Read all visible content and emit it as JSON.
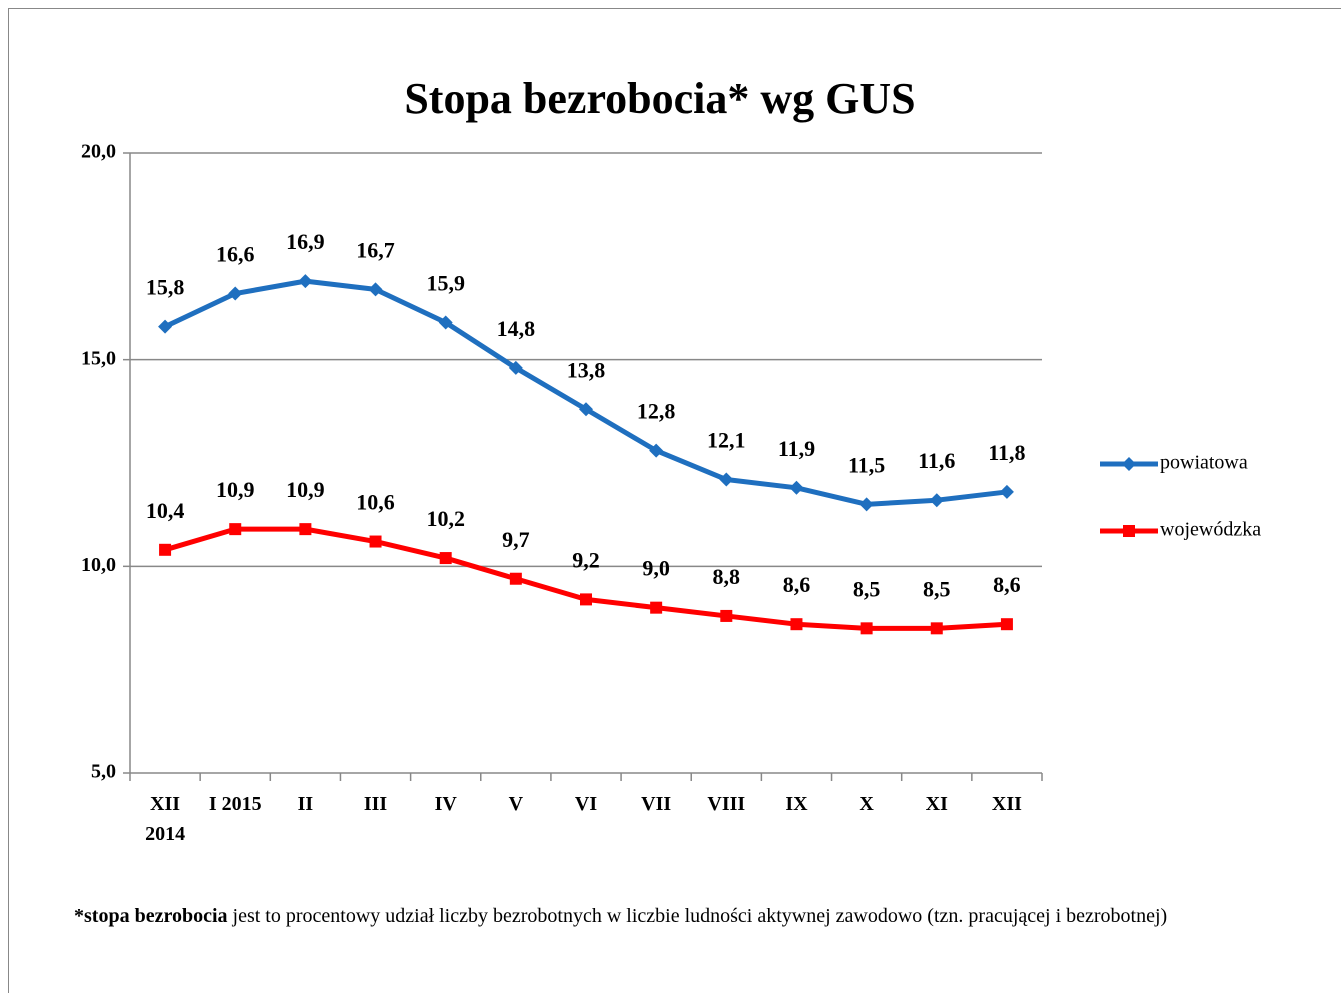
{
  "chart_data": {
    "type": "line",
    "title": "Stopa bezrobocia* wg GUS",
    "categories": [
      "XII 2014",
      "I 2015",
      "II",
      "III",
      "IV",
      "V",
      "VI",
      "VII",
      "VIII",
      "IX",
      "X",
      "XI",
      "XII"
    ],
    "series": [
      {
        "name": "powiatowa",
        "color": "#1f6fbf",
        "marker": "diamond",
        "values": [
          15.8,
          16.6,
          16.9,
          16.7,
          15.9,
          14.8,
          13.8,
          12.8,
          12.1,
          11.9,
          11.5,
          11.6,
          11.8
        ],
        "value_labels": [
          "15,8",
          "16,6",
          "16,9",
          "16,7",
          "15,9",
          "14,8",
          "13,8",
          "12,8",
          "12,1",
          "11,9",
          "11,5",
          "11,6",
          "11,8"
        ]
      },
      {
        "name": "wojewódzka",
        "color": "#ff0000",
        "marker": "square",
        "values": [
          10.4,
          10.9,
          10.9,
          10.6,
          10.2,
          9.7,
          9.2,
          9.0,
          8.8,
          8.6,
          8.5,
          8.5,
          8.6
        ],
        "value_labels": [
          "10,4",
          "10,9",
          "10,9",
          "10,6",
          "10,2",
          "9,7",
          "9,2",
          "9,0",
          "8,8",
          "8,6",
          "8,5",
          "8,5",
          "8,6"
        ]
      }
    ],
    "ylim": [
      5,
      20
    ],
    "yticks": [
      {
        "value": 5,
        "label": "5,0"
      },
      {
        "value": 10,
        "label": "10,0"
      },
      {
        "value": 15,
        "label": "15,0"
      },
      {
        "value": 20,
        "label": "20,0"
      }
    ],
    "grid": true,
    "legend": "right",
    "footnote_bold": "*stopa bezrobocia",
    "footnote_text": " jest to procentowy udział liczby bezrobotnych w liczbie ludności  aktywnej zawodowo (tzn. pracującej i bezrobotnej)"
  }
}
